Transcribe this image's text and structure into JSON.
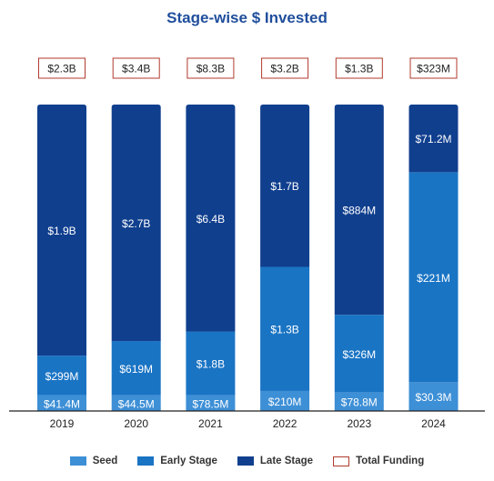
{
  "chart_data": {
    "type": "bar",
    "stacked": true,
    "title": "Stage-wise $ Invested",
    "categories": [
      "2019",
      "2020",
      "2021",
      "2022",
      "2023",
      "2024"
    ],
    "series": [
      {
        "name": "Seed",
        "color": "#3d8fd6",
        "values": [
          41.4,
          44.5,
          78.5,
          210,
          78.8,
          30.3
        ],
        "labels": [
          "$41.4M",
          "$44.5M",
          "$78.5M",
          "$210M",
          "$78.8M",
          "$30.3M"
        ]
      },
      {
        "name": "Early Stage",
        "color": "#1a74c4",
        "values": [
          299,
          619,
          1800,
          1300,
          326,
          221
        ],
        "labels": [
          "$299M",
          "$619M",
          "$1.8B",
          "$1.3B",
          "$326M",
          "$221M"
        ]
      },
      {
        "name": "Late Stage",
        "color": "#103f8e",
        "values": [
          1900,
          2700,
          6400,
          1700,
          884,
          71.2
        ],
        "labels": [
          "$1.9B",
          "$2.7B",
          "$6.4B",
          "$1.7B",
          "$884M",
          "$71.2M"
        ]
      }
    ],
    "totals": {
      "name": "Total Funding",
      "values": [
        2300,
        3400,
        8300,
        3200,
        1300,
        323
      ],
      "labels": [
        "$2.3B",
        "$3.4B",
        "$8.3B",
        "$3.2B",
        "$1.3B",
        "$323M"
      ],
      "border_color": "#b03a2e"
    },
    "value_unit": "$M",
    "layout_note": "each column scaled to full height (100% stacked)",
    "legend_position": "bottom",
    "grid": false
  }
}
